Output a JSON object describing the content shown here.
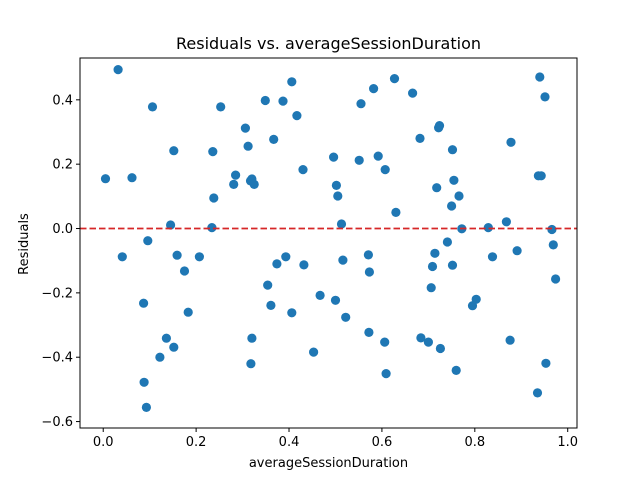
{
  "chart_data": {
    "type": "scatter",
    "title": "Residuals vs. averageSessionDuration",
    "xlabel": "averageSessionDuration",
    "ylabel": "Residuals",
    "xlim": [
      -0.05,
      1.02
    ],
    "ylim": [
      -0.62,
      0.53
    ],
    "xticks": [
      0.0,
      0.2,
      0.4,
      0.6,
      0.8,
      1.0
    ],
    "xtick_labels": [
      "0.0",
      "0.2",
      "0.4",
      "0.6",
      "0.8",
      "1.0"
    ],
    "yticks": [
      -0.6,
      -0.4,
      -0.2,
      0.0,
      0.2,
      0.4
    ],
    "ytick_labels": [
      "−0.6",
      "−0.4",
      "−0.2",
      "0.0",
      "0.2",
      "0.4"
    ],
    "marker_color": "#1f77b4",
    "reference_line": {
      "y": 0,
      "style": "dashed",
      "color": "#d62728"
    },
    "grid": false,
    "points": [
      {
        "x": 0.005,
        "y": 0.155
      },
      {
        "x": 0.032,
        "y": 0.494
      },
      {
        "x": 0.041,
        "y": -0.088
      },
      {
        "x": 0.062,
        "y": 0.158
      },
      {
        "x": 0.087,
        "y": -0.232
      },
      {
        "x": 0.088,
        "y": -0.478
      },
      {
        "x": 0.093,
        "y": -0.556
      },
      {
        "x": 0.096,
        "y": -0.038
      },
      {
        "x": 0.106,
        "y": 0.378
      },
      {
        "x": 0.122,
        "y": -0.4
      },
      {
        "x": 0.136,
        "y": -0.341
      },
      {
        "x": 0.145,
        "y": 0.011
      },
      {
        "x": 0.152,
        "y": -0.369
      },
      {
        "x": 0.152,
        "y": 0.242
      },
      {
        "x": 0.159,
        "y": -0.083
      },
      {
        "x": 0.175,
        "y": -0.132
      },
      {
        "x": 0.183,
        "y": -0.26
      },
      {
        "x": 0.207,
        "y": -0.088
      },
      {
        "x": 0.234,
        "y": 0.003
      },
      {
        "x": 0.236,
        "y": 0.239
      },
      {
        "x": 0.238,
        "y": 0.095
      },
      {
        "x": 0.253,
        "y": 0.378
      },
      {
        "x": 0.281,
        "y": 0.137
      },
      {
        "x": 0.285,
        "y": 0.166
      },
      {
        "x": 0.306,
        "y": 0.312
      },
      {
        "x": 0.312,
        "y": 0.256
      },
      {
        "x": 0.317,
        "y": 0.148
      },
      {
        "x": 0.318,
        "y": -0.42
      },
      {
        "x": 0.32,
        "y": 0.154
      },
      {
        "x": 0.32,
        "y": -0.341
      },
      {
        "x": 0.325,
        "y": 0.137
      },
      {
        "x": 0.349,
        "y": 0.398
      },
      {
        "x": 0.354,
        "y": -0.176
      },
      {
        "x": 0.361,
        "y": -0.239
      },
      {
        "x": 0.367,
        "y": 0.277
      },
      {
        "x": 0.374,
        "y": -0.11
      },
      {
        "x": 0.387,
        "y": 0.396
      },
      {
        "x": 0.393,
        "y": -0.088
      },
      {
        "x": 0.406,
        "y": 0.456
      },
      {
        "x": 0.406,
        "y": -0.262
      },
      {
        "x": 0.417,
        "y": 0.351
      },
      {
        "x": 0.43,
        "y": 0.183
      },
      {
        "x": 0.432,
        "y": -0.113
      },
      {
        "x": 0.453,
        "y": -0.384
      },
      {
        "x": 0.467,
        "y": -0.208
      },
      {
        "x": 0.496,
        "y": 0.222
      },
      {
        "x": 0.5,
        "y": -0.223
      },
      {
        "x": 0.502,
        "y": 0.134
      },
      {
        "x": 0.505,
        "y": 0.101
      },
      {
        "x": 0.513,
        "y": 0.014
      },
      {
        "x": 0.516,
        "y": -0.098
      },
      {
        "x": 0.522,
        "y": -0.276
      },
      {
        "x": 0.551,
        "y": 0.212
      },
      {
        "x": 0.555,
        "y": 0.388
      },
      {
        "x": 0.571,
        "y": -0.082
      },
      {
        "x": 0.572,
        "y": -0.323
      },
      {
        "x": 0.573,
        "y": -0.135
      },
      {
        "x": 0.582,
        "y": 0.435
      },
      {
        "x": 0.592,
        "y": 0.225
      },
      {
        "x": 0.606,
        "y": -0.353
      },
      {
        "x": 0.607,
        "y": 0.183
      },
      {
        "x": 0.609,
        "y": -0.451
      },
      {
        "x": 0.627,
        "y": 0.466
      },
      {
        "x": 0.63,
        "y": 0.05
      },
      {
        "x": 0.666,
        "y": 0.421
      },
      {
        "x": 0.682,
        "y": 0.28
      },
      {
        "x": 0.684,
        "y": -0.34
      },
      {
        "x": 0.7,
        "y": -0.353
      },
      {
        "x": 0.706,
        "y": -0.184
      },
      {
        "x": 0.709,
        "y": -0.118
      },
      {
        "x": 0.714,
        "y": -0.077
      },
      {
        "x": 0.718,
        "y": 0.127
      },
      {
        "x": 0.722,
        "y": 0.313
      },
      {
        "x": 0.724,
        "y": 0.32
      },
      {
        "x": 0.726,
        "y": -0.373
      },
      {
        "x": 0.741,
        "y": -0.042
      },
      {
        "x": 0.75,
        "y": 0.07
      },
      {
        "x": 0.752,
        "y": 0.245
      },
      {
        "x": 0.752,
        "y": -0.114
      },
      {
        "x": 0.755,
        "y": 0.15
      },
      {
        "x": 0.76,
        "y": -0.441
      },
      {
        "x": 0.766,
        "y": 0.101
      },
      {
        "x": 0.772,
        "y": -0.001
      },
      {
        "x": 0.795,
        "y": -0.24
      },
      {
        "x": 0.803,
        "y": -0.22
      },
      {
        "x": 0.829,
        "y": 0.003
      },
      {
        "x": 0.838,
        "y": -0.088
      },
      {
        "x": 0.868,
        "y": 0.021
      },
      {
        "x": 0.876,
        "y": -0.347
      },
      {
        "x": 0.878,
        "y": 0.268
      },
      {
        "x": 0.891,
        "y": -0.069
      },
      {
        "x": 0.935,
        "y": -0.511
      },
      {
        "x": 0.937,
        "y": 0.164
      },
      {
        "x": 0.94,
        "y": 0.471
      },
      {
        "x": 0.943,
        "y": 0.164
      },
      {
        "x": 0.951,
        "y": 0.409
      },
      {
        "x": 0.953,
        "y": -0.419
      },
      {
        "x": 0.966,
        "y": -0.003
      },
      {
        "x": 0.969,
        "y": -0.051
      },
      {
        "x": 0.974,
        "y": -0.157
      }
    ]
  }
}
